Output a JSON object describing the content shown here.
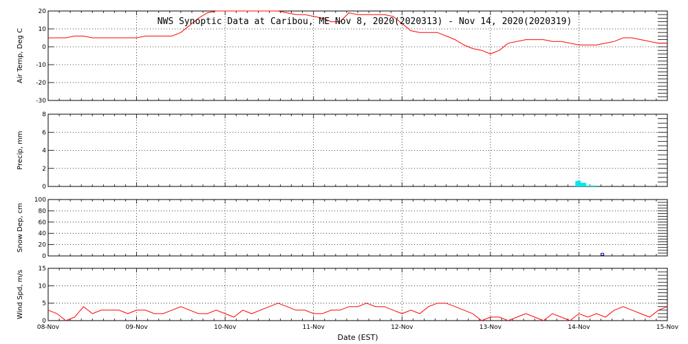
{
  "chart_data": [
    {
      "type": "line",
      "title": "NWS Synoptic Data at Caribou, ME   Nov  8, 2020(2020313) - Nov 14, 2020(2020319)",
      "ylabel": "Air Temp, Deg C",
      "ylim": [
        -30,
        20
      ],
      "yticks": [
        20,
        10,
        0,
        -10,
        -20,
        -30
      ],
      "grid": true,
      "color": "#ff0000",
      "series": [
        {
          "x": [
            0,
            0.1,
            0.2,
            0.3,
            0.4,
            0.5,
            0.6,
            0.7,
            0.8,
            0.9,
            1.0,
            1.1,
            1.2,
            1.3,
            1.4,
            1.5,
            1.6,
            1.7,
            1.8,
            1.9,
            2.0,
            2.1,
            2.2,
            2.3,
            2.4,
            2.5,
            2.6,
            2.7,
            2.8,
            2.9,
            3.0,
            3.1,
            3.2,
            3.3,
            3.4,
            3.5,
            3.6,
            3.7,
            3.8,
            3.9,
            4.0,
            4.1,
            4.2,
            4.3,
            4.4,
            4.5,
            4.6,
            4.7,
            4.8,
            4.9,
            5.0,
            5.1,
            5.2,
            5.3,
            5.4,
            5.5,
            5.6,
            5.7,
            5.8,
            5.9,
            6.0,
            6.1,
            6.2,
            6.3,
            6.4,
            6.5,
            6.6,
            6.7,
            6.8,
            6.9,
            7.0
          ],
          "values": [
            5,
            5,
            5,
            6,
            6,
            5,
            5,
            5,
            5,
            5,
            5,
            6,
            6,
            6,
            6,
            8,
            12,
            16,
            19,
            20,
            21,
            22,
            22,
            21,
            21,
            20,
            20,
            19,
            18,
            18,
            17,
            16,
            14,
            14,
            19,
            18,
            18,
            18,
            18,
            17,
            13,
            9,
            8,
            8,
            8,
            6,
            4,
            1,
            -1,
            -2,
            -4,
            -2,
            2,
            3,
            4,
            4,
            4,
            3,
            3,
            2,
            1,
            1,
            1,
            2,
            3,
            5,
            5,
            4,
            3,
            2,
            2
          ]
        }
      ]
    },
    {
      "type": "bar",
      "ylabel": "Precip, mm",
      "ylim": [
        0,
        8
      ],
      "yticks": [
        0,
        2,
        4,
        6,
        8
      ],
      "grid": true,
      "color": "#00e8f0",
      "series": [
        {
          "x": [
            5.96,
            6.02,
            6.08,
            6.14
          ],
          "values": [
            0.6,
            0.4,
            0.1,
            0.1
          ]
        }
      ]
    },
    {
      "type": "bar",
      "ylabel": "Snow Dep, cm",
      "ylim": [
        0,
        100
      ],
      "yticks": [
        0,
        20,
        40,
        60,
        80,
        100
      ],
      "grid": true,
      "color": "#000080",
      "series": [
        {
          "x": [
            6.25
          ],
          "values": [
            1
          ]
        }
      ]
    },
    {
      "type": "line",
      "ylabel": "Wind Spd, m/s",
      "xlabel": "Date (EST)",
      "ylim": [
        0,
        15
      ],
      "yticks": [
        0,
        5,
        10,
        15
      ],
      "grid": true,
      "color": "#ff0000",
      "x_tick_labels": [
        "08-Nov",
        "09-Nov",
        "10-Nov",
        "11-Nov",
        "12-Nov",
        "13-Nov",
        "14-Nov",
        "15-Nov"
      ],
      "xlim": [
        0,
        7
      ],
      "series": [
        {
          "x": [
            0,
            0.1,
            0.2,
            0.3,
            0.4,
            0.5,
            0.6,
            0.7,
            0.8,
            0.9,
            1.0,
            1.1,
            1.2,
            1.3,
            1.4,
            1.5,
            1.6,
            1.7,
            1.8,
            1.9,
            2.0,
            2.1,
            2.2,
            2.3,
            2.4,
            2.5,
            2.6,
            2.7,
            2.8,
            2.9,
            3.0,
            3.1,
            3.2,
            3.3,
            3.4,
            3.5,
            3.6,
            3.7,
            3.8,
            3.9,
            4.0,
            4.1,
            4.2,
            4.3,
            4.4,
            4.5,
            4.6,
            4.7,
            4.8,
            4.9,
            5.0,
            5.1,
            5.2,
            5.3,
            5.4,
            5.5,
            5.6,
            5.7,
            5.8,
            5.9,
            6.0,
            6.1,
            6.2,
            6.3,
            6.4,
            6.5,
            6.6,
            6.7,
            6.8,
            6.9,
            7.0
          ],
          "values": [
            3,
            2,
            0,
            1,
            4,
            2,
            3,
            3,
            3,
            2,
            3,
            3,
            2,
            2,
            3,
            4,
            3,
            2,
            2,
            3,
            2,
            1,
            3,
            2,
            3,
            4,
            5,
            4,
            3,
            3,
            2,
            2,
            3,
            3,
            4,
            4,
            5,
            4,
            4,
            3,
            2,
            3,
            2,
            4,
            5,
            5,
            4,
            3,
            2,
            0,
            1,
            1,
            0,
            1,
            2,
            1,
            0,
            2,
            1,
            0,
            2,
            1,
            2,
            1,
            3,
            4,
            3,
            2,
            1,
            3,
            4
          ]
        }
      ]
    }
  ]
}
